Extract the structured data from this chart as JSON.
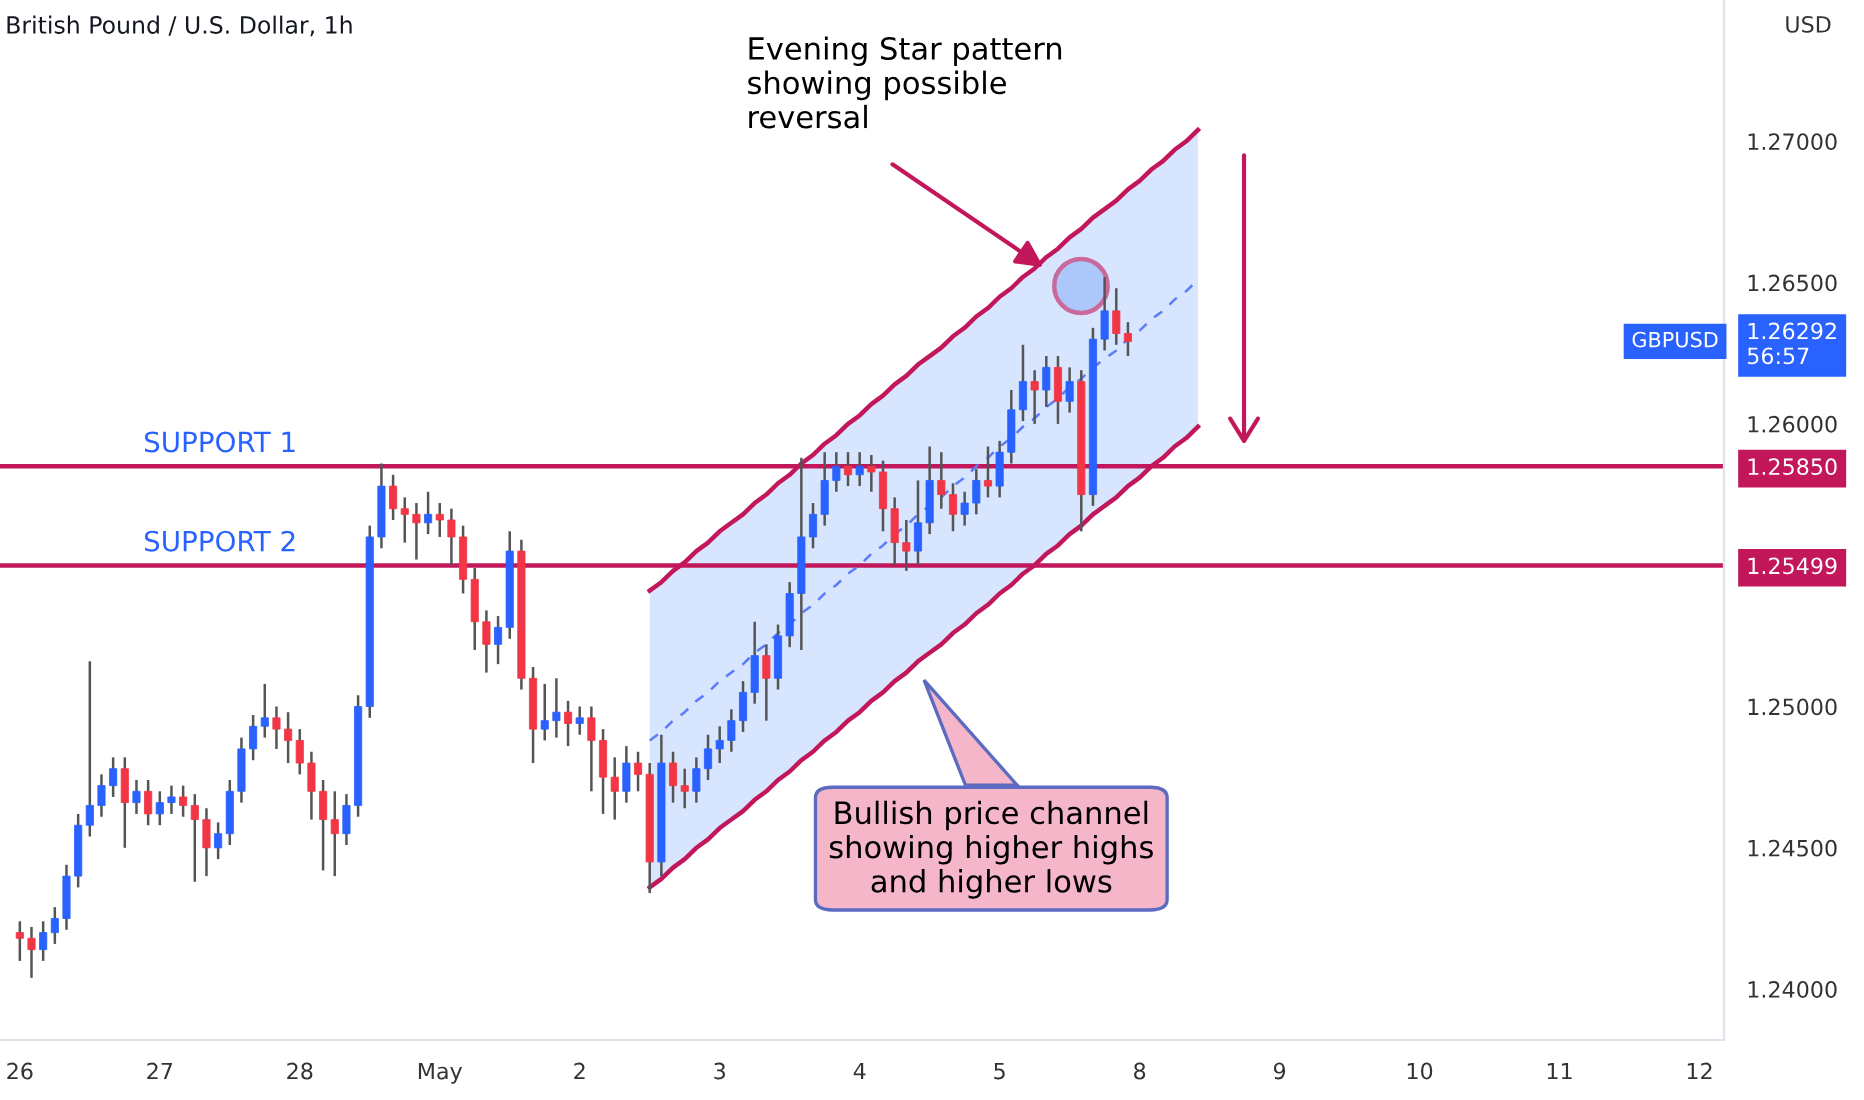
{
  "chart_data": {
    "type": "candlestick",
    "title": "British Pound / U.S. Dollar, 1h",
    "ylabel": "USD",
    "categories": [
      "26",
      null,
      null,
      null,
      null,
      null,
      null,
      null,
      null,
      null,
      null,
      null,
      "27",
      null,
      null,
      null,
      null,
      null,
      null,
      null,
      null,
      null,
      null,
      null,
      "28",
      null,
      null,
      null,
      null,
      null,
      null,
      null,
      null,
      null,
      null,
      null,
      "May",
      null,
      null,
      null,
      null,
      null,
      null,
      null,
      null,
      null,
      null,
      null,
      "2",
      null,
      null,
      null,
      null,
      null,
      null,
      null,
      null,
      null,
      null,
      null,
      "3",
      null,
      null,
      null,
      null,
      null,
      null,
      null,
      null,
      null,
      null,
      null,
      "4",
      null,
      null,
      null,
      null,
      null,
      null,
      null,
      null,
      null,
      null,
      null,
      "5",
      null,
      null,
      null,
      null,
      null,
      null,
      null,
      null,
      null,
      null,
      null,
      "8",
      null,
      null,
      null,
      null,
      null,
      null,
      null,
      null,
      null,
      null,
      null,
      "9",
      null,
      null,
      null,
      null,
      null,
      null,
      null,
      null,
      null,
      null,
      null,
      "10",
      null,
      null,
      null,
      null,
      null,
      null,
      null,
      null,
      null,
      null,
      null,
      "11",
      null,
      null,
      null,
      null,
      null,
      null,
      null,
      null,
      null,
      null,
      null,
      "12"
    ],
    "ohlc": [
      [
        1.242,
        1.2424,
        1.241,
        1.2418
      ],
      [
        1.2418,
        1.2422,
        1.2404,
        1.2414
      ],
      [
        1.2414,
        1.2424,
        1.241,
        1.242
      ],
      [
        1.242,
        1.2429,
        1.2416,
        1.2425
      ],
      [
        1.2425,
        1.2444,
        1.2421,
        1.244
      ],
      [
        1.244,
        1.2462,
        1.2436,
        1.2458
      ],
      [
        1.2458,
        1.2516,
        1.2454,
        1.2465
      ],
      [
        1.2465,
        1.2476,
        1.2461,
        1.2472
      ],
      [
        1.2472,
        1.2482,
        1.2468,
        1.2478
      ],
      [
        1.2478,
        1.2482,
        1.245,
        1.2466
      ],
      [
        1.2466,
        1.2474,
        1.2462,
        1.247
      ],
      [
        1.247,
        1.2474,
        1.2458,
        1.2462
      ],
      [
        1.2462,
        1.247,
        1.2458,
        1.2466
      ],
      [
        1.2466,
        1.2472,
        1.2462,
        1.2468
      ],
      [
        1.2468,
        1.2472,
        1.2461,
        1.2465
      ],
      [
        1.2465,
        1.2469,
        1.2438,
        1.246
      ],
      [
        1.246,
        1.2464,
        1.244,
        1.245
      ],
      [
        1.245,
        1.2459,
        1.2446,
        1.2455
      ],
      [
        1.2455,
        1.2474,
        1.2451,
        1.247
      ],
      [
        1.247,
        1.2489,
        1.2466,
        1.2485
      ],
      [
        1.2485,
        1.2497,
        1.2481,
        1.2493
      ],
      [
        1.2493,
        1.2508,
        1.2489,
        1.2496
      ],
      [
        1.2496,
        1.25,
        1.2485,
        1.2492
      ],
      [
        1.2492,
        1.2498,
        1.248,
        1.2488
      ],
      [
        1.2488,
        1.2492,
        1.2476,
        1.248
      ],
      [
        1.248,
        1.2484,
        1.246,
        1.247
      ],
      [
        1.247,
        1.2474,
        1.2442,
        1.246
      ],
      [
        1.246,
        1.247,
        1.244,
        1.2455
      ],
      [
        1.2455,
        1.2469,
        1.2451,
        1.2465
      ],
      [
        1.2465,
        1.2504,
        1.2461,
        1.25
      ],
      [
        1.25,
        1.2564,
        1.2496,
        1.256
      ],
      [
        1.256,
        1.2586,
        1.2556,
        1.2578
      ],
      [
        1.2578,
        1.2582,
        1.2566,
        1.257
      ],
      [
        1.257,
        1.2574,
        1.2558,
        1.2568
      ],
      [
        1.2568,
        1.2572,
        1.2552,
        1.2565
      ],
      [
        1.2565,
        1.2576,
        1.2561,
        1.2568
      ],
      [
        1.2568,
        1.2572,
        1.256,
        1.2566
      ],
      [
        1.2566,
        1.257,
        1.255,
        1.256
      ],
      [
        1.256,
        1.2564,
        1.254,
        1.2545
      ],
      [
        1.2545,
        1.2549,
        1.252,
        1.253
      ],
      [
        1.253,
        1.2534,
        1.2512,
        1.2522
      ],
      [
        1.2522,
        1.2532,
        1.2515,
        1.2528
      ],
      [
        1.2528,
        1.2562,
        1.2524,
        1.2555
      ],
      [
        1.2555,
        1.2559,
        1.2506,
        1.251
      ],
      [
        1.251,
        1.2514,
        1.248,
        1.2492
      ],
      [
        1.2492,
        1.2508,
        1.2488,
        1.2495
      ],
      [
        1.2495,
        1.251,
        1.2489,
        1.2498
      ],
      [
        1.2498,
        1.2502,
        1.2486,
        1.2494
      ],
      [
        1.2494,
        1.25,
        1.249,
        1.2496
      ],
      [
        1.2496,
        1.25,
        1.247,
        1.2488
      ],
      [
        1.2488,
        1.2492,
        1.2462,
        1.2475
      ],
      [
        1.2475,
        1.2482,
        1.246,
        1.247
      ],
      [
        1.247,
        1.2486,
        1.2466,
        1.248
      ],
      [
        1.248,
        1.2484,
        1.247,
        1.2476
      ],
      [
        1.2476,
        1.248,
        1.2434,
        1.2445
      ],
      [
        1.2445,
        1.249,
        1.244,
        1.248
      ],
      [
        1.248,
        1.2484,
        1.2466,
        1.2472
      ],
      [
        1.2472,
        1.2478,
        1.2464,
        1.247
      ],
      [
        1.247,
        1.2482,
        1.2466,
        1.2478
      ],
      [
        1.2478,
        1.249,
        1.2474,
        1.2485
      ],
      [
        1.2485,
        1.2493,
        1.248,
        1.2488
      ],
      [
        1.2488,
        1.2499,
        1.2484,
        1.2495
      ],
      [
        1.2495,
        1.2509,
        1.2491,
        1.2505
      ],
      [
        1.2505,
        1.253,
        1.2501,
        1.2518
      ],
      [
        1.2518,
        1.2522,
        1.2495,
        1.251
      ],
      [
        1.251,
        1.2529,
        1.2506,
        1.2525
      ],
      [
        1.2525,
        1.2544,
        1.2521,
        1.254
      ],
      [
        1.254,
        1.2588,
        1.252,
        1.256
      ],
      [
        1.256,
        1.2572,
        1.2556,
        1.2568
      ],
      [
        1.2568,
        1.259,
        1.2564,
        1.258
      ],
      [
        1.258,
        1.259,
        1.2576,
        1.2585
      ],
      [
        1.2585,
        1.259,
        1.2578,
        1.2582
      ],
      [
        1.2582,
        1.259,
        1.2578,
        1.2585
      ],
      [
        1.2585,
        1.2589,
        1.2576,
        1.2583
      ],
      [
        1.2583,
        1.2587,
        1.2562,
        1.257
      ],
      [
        1.257,
        1.2574,
        1.255,
        1.2558
      ],
      [
        1.2558,
        1.2566,
        1.2548,
        1.2555
      ],
      [
        1.2555,
        1.258,
        1.255,
        1.2565
      ],
      [
        1.2565,
        1.2592,
        1.2561,
        1.258
      ],
      [
        1.258,
        1.259,
        1.257,
        1.2575
      ],
      [
        1.2575,
        1.2579,
        1.2562,
        1.2568
      ],
      [
        1.2568,
        1.2576,
        1.2564,
        1.2572
      ],
      [
        1.2572,
        1.2584,
        1.2568,
        1.258
      ],
      [
        1.258,
        1.2592,
        1.2574,
        1.2578
      ],
      [
        1.2578,
        1.2594,
        1.2574,
        1.259
      ],
      [
        1.259,
        1.2612,
        1.2586,
        1.2605
      ],
      [
        1.2605,
        1.2628,
        1.2601,
        1.2615
      ],
      [
        1.2615,
        1.2619,
        1.26,
        1.2612
      ],
      [
        1.2612,
        1.2624,
        1.2606,
        1.262
      ],
      [
        1.262,
        1.2624,
        1.26,
        1.2608
      ],
      [
        1.2608,
        1.262,
        1.2604,
        1.2615
      ],
      [
        1.2615,
        1.2619,
        1.2562,
        1.2575
      ],
      [
        1.2575,
        1.2634,
        1.2571,
        1.263
      ],
      [
        1.263,
        1.2652,
        1.2626,
        1.264
      ],
      [
        1.264,
        1.2648,
        1.2628,
        1.2632
      ],
      [
        1.2632,
        1.2636,
        1.2624,
        1.26292
      ],
      null,
      null,
      null,
      null,
      null,
      null,
      null,
      null,
      null,
      null,
      null,
      null,
      null,
      null,
      null,
      null,
      null,
      null,
      null,
      null,
      null,
      null,
      null,
      null,
      null,
      null,
      null,
      null,
      null,
      null,
      null,
      null,
      null,
      null,
      null,
      null,
      null,
      null,
      null,
      null,
      null,
      null,
      null,
      null,
      null,
      null,
      null,
      null,
      null
    ],
    "colors": [
      "#f23645",
      "#f23645",
      "#2962ff",
      "#2962ff",
      "#2962ff",
      "#2962ff",
      "#2962ff",
      "#2962ff",
      "#2962ff",
      "#f23645",
      "#2962ff",
      "#f23645",
      "#2962ff",
      "#2962ff",
      "#f23645",
      "#f23645",
      "#f23645",
      "#2962ff",
      "#2962ff",
      "#2962ff",
      "#2962ff",
      "#2962ff",
      "#f23645",
      "#f23645",
      "#f23645",
      "#f23645",
      "#f23645",
      "#f23645",
      "#2962ff",
      "#2962ff",
      "#2962ff",
      "#2962ff",
      "#f23645",
      "#f23645",
      "#f23645",
      "#2962ff",
      "#f23645",
      "#f23645",
      "#f23645",
      "#f23645",
      "#f23645",
      "#2962ff",
      "#2962ff",
      "#f23645",
      "#f23645",
      "#2962ff",
      "#2962ff",
      "#f23645",
      "#2962ff",
      "#f23645",
      "#f23645",
      "#f23645",
      "#2962ff",
      "#f23645",
      "#f23645",
      "#2962ff",
      "#f23645",
      "#f23645",
      "#2962ff",
      "#2962ff",
      "#2962ff",
      "#2962ff",
      "#2962ff",
      "#2962ff",
      "#f23645",
      "#2962ff",
      "#2962ff",
      "#2962ff",
      "#2962ff",
      "#2962ff",
      "#2962ff",
      "#f23645",
      "#2962ff",
      "#f23645",
      "#f23645",
      "#f23645",
      "#f23645",
      "#2962ff",
      "#2962ff",
      "#f23645",
      "#f23645",
      "#2962ff",
      "#2962ff",
      "#f23645",
      "#2962ff",
      "#2962ff",
      "#2962ff",
      "#f23645",
      "#2962ff",
      "#f23645",
      "#2962ff",
      "#f23645",
      "#2962ff",
      "#2962ff",
      "#f23645",
      "#f23645",
      null,
      null,
      null,
      null,
      null,
      null,
      null,
      null,
      null,
      null,
      null,
      null,
      null,
      null,
      null,
      null,
      null,
      null,
      null,
      null,
      null,
      null,
      null,
      null,
      null,
      null,
      null,
      null,
      null,
      null,
      null,
      null,
      null,
      null,
      null,
      null,
      null,
      null,
      null,
      null,
      null,
      null,
      null,
      null,
      null,
      null,
      null,
      null,
      null
    ],
    "series": [
      {
        "type": "line",
        "color": "#c2185b",
        "line_style": "solid",
        "values": [
          null,
          null,
          null,
          null,
          null,
          null,
          null,
          null,
          null,
          null,
          null,
          null,
          null,
          null,
          null,
          null,
          null,
          null,
          null,
          null,
          null,
          null,
          null,
          null,
          null,
          null,
          null,
          null,
          null,
          null,
          null,
          null,
          null,
          null,
          null,
          null,
          null,
          null,
          null,
          null,
          null,
          null,
          null,
          null,
          null,
          null,
          null,
          null,
          null,
          null,
          null,
          null,
          null,
          null,
          1.2541,
          1.2544,
          1.2548,
          1.2551,
          1.2555,
          1.2558,
          1.2562,
          1.2565,
          1.2568,
          1.2572,
          1.2575,
          1.2579,
          1.2582,
          1.2586,
          1.2589,
          1.2593,
          1.2596,
          1.26,
          1.2603,
          1.2607,
          1.261,
          1.2614,
          1.2617,
          1.2621,
          1.2624,
          1.2627,
          1.2631,
          1.2634,
          1.2638,
          1.2641,
          1.2645,
          1.2648,
          1.2652,
          1.2655,
          1.2659,
          1.2662,
          1.2666,
          1.2669,
          1.2673,
          1.2676,
          1.2679,
          1.2683,
          1.2686,
          1.269,
          1.2693,
          1.2697,
          1.27,
          1.2704,
          null,
          null,
          null,
          null,
          null,
          null,
          null,
          null,
          null,
          null,
          null,
          null,
          null,
          null,
          null,
          null,
          null,
          null,
          null,
          null,
          null,
          null,
          null,
          null,
          null,
          null,
          null,
          null,
          null,
          null,
          null,
          null,
          null,
          null,
          null,
          null,
          null,
          null,
          null,
          null,
          null,
          null,
          null
        ]
      },
      {
        "type": "line",
        "color": "#c2185b",
        "line_style": "solid",
        "values": [
          null,
          null,
          null,
          null,
          null,
          null,
          null,
          null,
          null,
          null,
          null,
          null,
          null,
          null,
          null,
          null,
          null,
          null,
          null,
          null,
          null,
          null,
          null,
          null,
          null,
          null,
          null,
          null,
          null,
          null,
          null,
          null,
          null,
          null,
          null,
          null,
          null,
          null,
          null,
          null,
          null,
          null,
          null,
          null,
          null,
          null,
          null,
          null,
          null,
          null,
          null,
          null,
          null,
          null,
          1.2436,
          1.2439,
          1.2443,
          1.2446,
          1.245,
          1.2453,
          1.2457,
          1.246,
          1.2463,
          1.2467,
          1.247,
          1.2474,
          1.2477,
          1.2481,
          1.2484,
          1.2488,
          1.2491,
          1.2495,
          1.2498,
          1.2502,
          1.2505,
          1.2509,
          1.2512,
          1.2516,
          1.2519,
          1.2522,
          1.2526,
          1.2529,
          1.2533,
          1.2536,
          1.254,
          1.2543,
          1.2547,
          1.255,
          1.2554,
          1.2557,
          1.2561,
          1.2564,
          1.2568,
          1.2571,
          1.2574,
          1.2578,
          1.2581,
          1.2585,
          1.2588,
          1.2592,
          1.2595,
          1.2599,
          null,
          null,
          null,
          null,
          null,
          null,
          null,
          null,
          null,
          null,
          null,
          null,
          null,
          null,
          null,
          null,
          null,
          null,
          null,
          null,
          null,
          null,
          null,
          null,
          null,
          null,
          null,
          null,
          null,
          null,
          null,
          null,
          null,
          null,
          null,
          null,
          null,
          null,
          null,
          null,
          null,
          null,
          null
        ]
      },
      {
        "type": "line",
        "color": "#5c7cfa",
        "line_style": "dashed",
        "values": [
          null,
          null,
          null,
          null,
          null,
          null,
          null,
          null,
          null,
          null,
          null,
          null,
          null,
          null,
          null,
          null,
          null,
          null,
          null,
          null,
          null,
          null,
          null,
          null,
          null,
          null,
          null,
          null,
          null,
          null,
          null,
          null,
          null,
          null,
          null,
          null,
          null,
          null,
          null,
          null,
          null,
          null,
          null,
          null,
          null,
          null,
          null,
          null,
          null,
          null,
          null,
          null,
          null,
          null,
          1.2488,
          1.2491,
          1.2495,
          1.2498,
          1.2502,
          1.2505,
          1.2509,
          1.2512,
          1.2515,
          1.2519,
          1.2522,
          1.2526,
          1.2529,
          1.2533,
          1.2536,
          1.254,
          1.2543,
          1.2547,
          1.255,
          1.2554,
          1.2557,
          1.2561,
          1.2564,
          1.2568,
          1.2571,
          1.2574,
          1.2578,
          1.2581,
          1.2585,
          1.2588,
          1.2592,
          1.2595,
          1.2599,
          1.2602,
          1.2606,
          1.2609,
          1.2613,
          1.2616,
          1.262,
          1.2623,
          1.2626,
          1.263,
          1.2633,
          1.2637,
          1.264,
          1.2644,
          1.2647,
          1.2651,
          null,
          null,
          null,
          null,
          null,
          null,
          null,
          null,
          null,
          null,
          null,
          null,
          null,
          null,
          null,
          null,
          null,
          null,
          null,
          null,
          null,
          null,
          null,
          null,
          null,
          null,
          null,
          null,
          null,
          null,
          null,
          null,
          null,
          null,
          null,
          null,
          null,
          null,
          null,
          null,
          null,
          null,
          null
        ],
        "lower": [
          null,
          null,
          null,
          null,
          null,
          null,
          null,
          null,
          null,
          null,
          null,
          null,
          null,
          null,
          null,
          null,
          null,
          null,
          null,
          null,
          null,
          null,
          null,
          null,
          null,
          null,
          null,
          null,
          null,
          null,
          null,
          null,
          null,
          null,
          null,
          null,
          null,
          null,
          null,
          null,
          null,
          null,
          null,
          null,
          null,
          null,
          null,
          null,
          null,
          null,
          null,
          null,
          null,
          null,
          1.2436,
          1.2439,
          1.2443,
          1.2446,
          1.245,
          1.2453,
          1.2457,
          1.246,
          1.2463,
          1.2467,
          1.247,
          1.2474,
          1.2477,
          1.2481,
          1.2484,
          1.2488,
          1.2491,
          1.2495,
          1.2498,
          1.2502,
          1.2505,
          1.2509,
          1.2512,
          1.2516,
          1.2519,
          1.2522,
          1.2526,
          1.2529,
          1.2533,
          1.2536,
          1.254,
          1.2543,
          1.2547,
          1.255,
          1.2554,
          1.2557,
          1.2561,
          1.2564,
          1.2568,
          1.2571,
          1.2574,
          1.2578,
          1.2581,
          1.2585,
          1.2588,
          1.2592,
          1.2595,
          1.2599,
          null,
          null,
          null,
          null,
          null,
          null,
          null,
          null,
          null,
          null,
          null,
          null,
          null,
          null,
          null,
          null,
          null,
          null,
          null,
          null,
          null,
          null,
          null,
          null,
          null,
          null,
          null,
          null,
          null,
          null,
          null,
          null,
          null,
          null,
          null,
          null,
          null,
          null,
          null,
          null,
          null,
          null,
          null
        ],
        "upper": [
          null,
          null,
          null,
          null,
          null,
          null,
          null,
          null,
          null,
          null,
          null,
          null,
          null,
          null,
          null,
          null,
          null,
          null,
          null,
          null,
          null,
          null,
          null,
          null,
          null,
          null,
          null,
          null,
          null,
          null,
          null,
          null,
          null,
          null,
          null,
          null,
          null,
          null,
          null,
          null,
          null,
          null,
          null,
          null,
          null,
          null,
          null,
          null,
          null,
          null,
          null,
          null,
          null,
          null,
          1.2541,
          1.2544,
          1.2548,
          1.2551,
          1.2555,
          1.2558,
          1.2562,
          1.2565,
          1.2568,
          1.2572,
          1.2575,
          1.2579,
          1.2582,
          1.2586,
          1.2589,
          1.2593,
          1.2596,
          1.26,
          1.2603,
          1.2607,
          1.261,
          1.2614,
          1.2617,
          1.2621,
          1.2624,
          1.2627,
          1.2631,
          1.2634,
          1.2638,
          1.2641,
          1.2645,
          1.2648,
          1.2652,
          1.2655,
          1.2659,
          1.2662,
          1.2666,
          1.2669,
          1.2673,
          1.2676,
          1.2679,
          1.2683,
          1.2686,
          1.269,
          1.2693,
          1.2697,
          1.27,
          1.2704,
          null,
          null,
          null,
          null,
          null,
          null,
          null,
          null,
          null,
          null,
          null,
          null,
          null,
          null,
          null,
          null,
          null,
          null,
          null,
          null,
          null,
          null,
          null,
          null,
          null,
          null,
          null,
          null,
          null,
          null,
          null,
          null,
          null,
          null,
          null,
          null,
          null,
          null,
          null,
          null,
          null,
          null,
          null
        ]
      }
    ],
    "ref_lines": [
      {
        "axis": "y",
        "value": 1.2585,
        "label": "SUPPORT 1",
        "color": "#c2185b"
      },
      {
        "axis": "y",
        "value": 1.25499,
        "label": "SUPPORT 2",
        "color": "#c2185b"
      }
    ],
    "annotations": [
      "Evening Star pattern\nshowing possible\nreversal",
      "Bullish price channel\nshowing higher highs\nand higher lows",
      "GBPUSD"
    ],
    "ylim": [
      1.2382,
      1.275
    ],
    "yticks": [
      {
        "value": 1.24,
        "label": "1.24000"
      },
      {
        "value": 1.245,
        "label": "1.24500"
      },
      {
        "value": 1.25,
        "label": "1.25000"
      },
      {
        "value": 1.25499,
        "label": "1.25499"
      },
      {
        "value": 1.2585,
        "label": "1.25850"
      },
      {
        "value": 1.26,
        "label": "1.26000"
      },
      {
        "value": 1.26292,
        "label": "1.26292\n56:57"
      },
      {
        "value": 1.265,
        "label": "1.26500"
      },
      {
        "value": 1.27,
        "label": "1.27000"
      }
    ],
    "grid": false,
    "legend": false
  }
}
